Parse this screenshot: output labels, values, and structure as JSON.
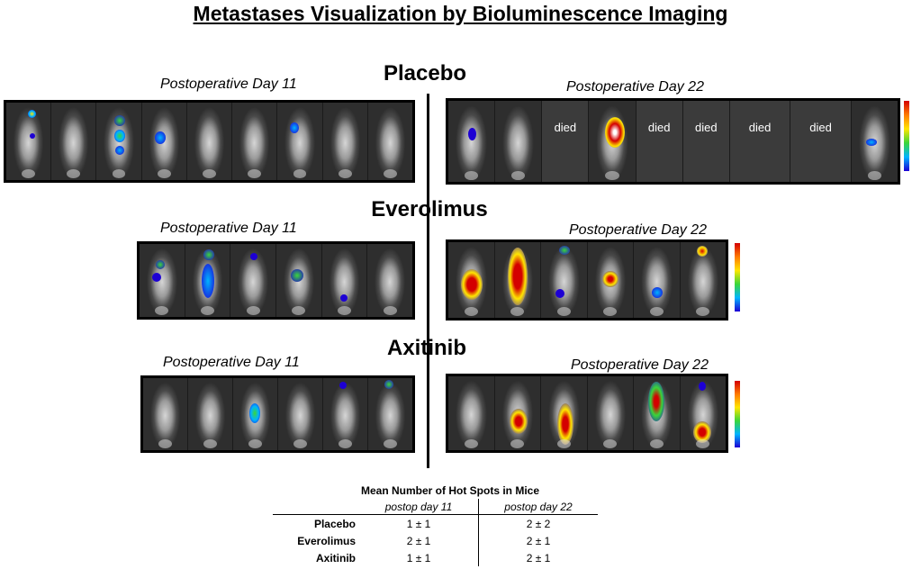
{
  "title": "Metastases Visualization by Bioluminescence Imaging",
  "groups": [
    {
      "name": "Placebo",
      "day11_label": "Postoperative Day 11",
      "day22_label": "Postoperative Day 22"
    },
    {
      "name": "Everolimus",
      "day11_label": "Postoperative Day 11",
      "day22_label": "Postoperative Day 22"
    },
    {
      "name": "Axitinib",
      "day11_label": "Postoperative Day 11",
      "day22_label": "Postoperative Day 22"
    }
  ],
  "died_label": "died",
  "table": {
    "title": "Mean Number of Hot Spots in Mice",
    "columns": [
      "postop day 11",
      "postop day 22"
    ],
    "rows": [
      {
        "label": "Placebo",
        "day11": "1 ± 1",
        "day22": "2 ± 2"
      },
      {
        "label": "Everolimus",
        "day11": "2 ± 1",
        "day22": "2 ± 1"
      },
      {
        "label": "Axitinib",
        "day11": "1 ± 1",
        "day22": "2 ± 1"
      }
    ]
  },
  "colors": {
    "signal_high": "#d40000",
    "signal_mid": "#ffe600",
    "signal_low": "#1d00d4",
    "died_panel": "#3b3b3b"
  }
}
